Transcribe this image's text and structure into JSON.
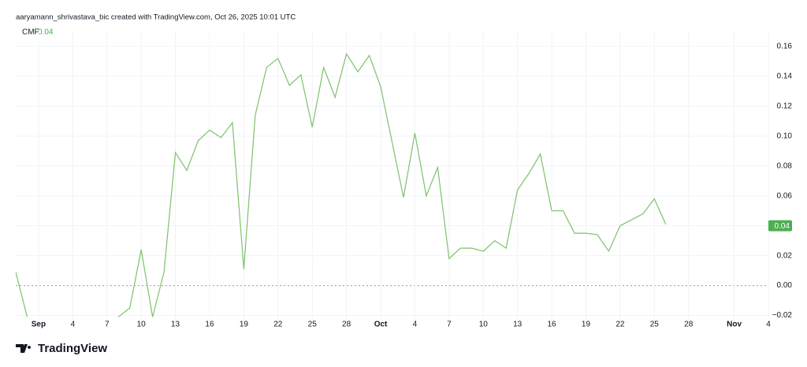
{
  "header": {
    "caption": "aaryamann_shrivastava_bic created with TradingView.com, Oct 26, 2025 10:01 UTC"
  },
  "footer": {
    "brand": "TradingView"
  },
  "chart_data": {
    "type": "line",
    "legend_label": "CMF",
    "last_value": 0.04,
    "x": [
      "2025-08-30",
      "2025-08-31",
      "2025-09-01",
      "2025-09-02",
      "2025-09-03",
      "2025-09-04",
      "2025-09-05",
      "2025-09-06",
      "2025-09-07",
      "2025-09-08",
      "2025-09-09",
      "2025-09-10",
      "2025-09-11",
      "2025-09-12",
      "2025-09-13",
      "2025-09-14",
      "2025-09-15",
      "2025-09-16",
      "2025-09-17",
      "2025-09-18",
      "2025-09-19",
      "2025-09-20",
      "2025-09-21",
      "2025-09-22",
      "2025-09-23",
      "2025-09-24",
      "2025-09-25",
      "2025-09-26",
      "2025-09-27",
      "2025-09-28",
      "2025-09-29",
      "2025-09-30",
      "2025-10-01",
      "2025-10-02",
      "2025-10-03",
      "2025-10-04",
      "2025-10-05",
      "2025-10-06",
      "2025-10-07",
      "2025-10-08",
      "2025-10-09",
      "2025-10-10",
      "2025-10-11",
      "2025-10-12",
      "2025-10-13",
      "2025-10-14",
      "2025-10-15",
      "2025-10-16",
      "2025-10-17",
      "2025-10-18",
      "2025-10-19",
      "2025-10-20",
      "2025-10-21",
      "2025-10-22",
      "2025-10-23",
      "2025-10-24",
      "2025-10-25",
      "2025-10-26"
    ],
    "series": [
      {
        "name": "CMF",
        "color": "#7cc26a",
        "values": [
          0.009,
          -0.021,
          null,
          null,
          null,
          null,
          null,
          null,
          null,
          -0.021,
          -0.015,
          0.024,
          -0.021,
          0.009,
          0.089,
          0.077,
          0.097,
          0.104,
          0.099,
          0.109,
          0.011,
          0.114,
          0.146,
          0.152,
          0.134,
          0.141,
          0.106,
          0.146,
          0.126,
          0.155,
          0.143,
          0.154,
          0.133,
          0.096,
          0.059,
          0.102,
          0.06,
          0.079,
          0.018,
          0.025,
          0.025,
          0.023,
          0.03,
          0.025,
          0.064,
          0.075,
          0.088,
          0.05,
          0.05,
          0.035,
          0.035,
          0.034,
          0.023,
          0.04,
          0.044,
          0.048,
          0.058,
          0.041
        ]
      }
    ],
    "xlim": [
      "2025-08-30",
      "2025-11-04"
    ],
    "xticks": [
      {
        "value": "2025-09-01",
        "label": "Sep"
      },
      {
        "value": "2025-09-04",
        "label": "4"
      },
      {
        "value": "2025-09-07",
        "label": "7"
      },
      {
        "value": "2025-09-10",
        "label": "10"
      },
      {
        "value": "2025-09-13",
        "label": "13"
      },
      {
        "value": "2025-09-16",
        "label": "16"
      },
      {
        "value": "2025-09-19",
        "label": "19"
      },
      {
        "value": "2025-09-22",
        "label": "22"
      },
      {
        "value": "2025-09-25",
        "label": "25"
      },
      {
        "value": "2025-09-28",
        "label": "28"
      },
      {
        "value": "2025-10-01",
        "label": "Oct"
      },
      {
        "value": "2025-10-04",
        "label": "4"
      },
      {
        "value": "2025-10-07",
        "label": "7"
      },
      {
        "value": "2025-10-10",
        "label": "10"
      },
      {
        "value": "2025-10-13",
        "label": "13"
      },
      {
        "value": "2025-10-16",
        "label": "16"
      },
      {
        "value": "2025-10-19",
        "label": "19"
      },
      {
        "value": "2025-10-22",
        "label": "22"
      },
      {
        "value": "2025-10-25",
        "label": "25"
      },
      {
        "value": "2025-10-28",
        "label": "28"
      },
      {
        "value": "2025-11-01",
        "label": "Nov"
      },
      {
        "value": "2025-11-04",
        "label": "4"
      }
    ],
    "ylim": [
      -0.025,
      0.17
    ],
    "yticks": [
      {
        "value": -0.02,
        "label": "−0.02"
      },
      {
        "value": 0,
        "label": "0.00"
      },
      0.02,
      0.04,
      0.06,
      0.08,
      {
        "value": 0.1,
        "label": "0.10"
      },
      0.12,
      0.14,
      0.16
    ],
    "grid": true
  }
}
